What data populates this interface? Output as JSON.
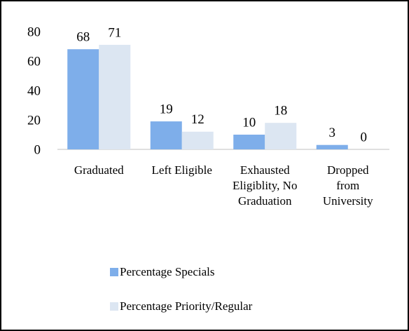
{
  "chart_data": {
    "type": "bar",
    "categories": [
      "Graduated",
      "Left Eligible",
      "Exhausted Eligiblity, No Graduation",
      "Dropped from University"
    ],
    "series": [
      {
        "name": "Percentage Specials",
        "color": "#7eaeea",
        "values": [
          68,
          19,
          10,
          3
        ]
      },
      {
        "name": "Percentage Priority/Regular",
        "color": "#dce6f2",
        "values": [
          71,
          12,
          18,
          0
        ]
      }
    ],
    "ylim": [
      0,
      80
    ],
    "yticks": [
      0,
      20,
      40,
      60,
      80
    ],
    "grid": false,
    "legend": "bottom"
  }
}
